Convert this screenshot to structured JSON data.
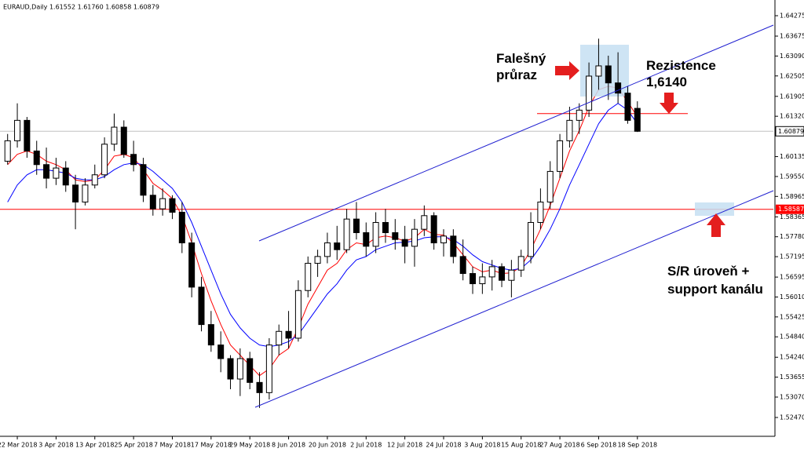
{
  "chart_data": {
    "type": "candlestick",
    "title": "EURAUD,Daily  1.61552 1.61760 1.60858 1.60879",
    "categories": [
      null,
      "22 Mar 2018",
      null,
      null,
      null,
      "3 Apr 2018",
      null,
      null,
      null,
      "13 Apr 2018",
      null,
      null,
      null,
      "25 Apr 2018",
      null,
      null,
      null,
      "7 May 2018",
      null,
      null,
      null,
      "17 May 2018",
      null,
      null,
      null,
      "29 May 2018",
      null,
      null,
      null,
      "8 Jun 2018",
      null,
      null,
      null,
      "20 Jun 2018",
      null,
      null,
      null,
      "2 Jul 2018",
      null,
      null,
      null,
      "12 Jul 2018",
      null,
      null,
      null,
      "24 Jul 2018",
      null,
      null,
      null,
      "3 Aug 2018",
      null,
      null,
      null,
      "15 Aug 2018",
      null,
      null,
      null,
      "27 Aug 2018",
      null,
      null,
      null,
      "6 Sep 2018",
      null,
      null,
      null,
      "18 Sep 2018"
    ],
    "open": [
      1.6,
      1.606,
      1.612,
      1.603,
      1.599,
      1.595,
      1.598,
      1.593,
      1.588,
      1.593,
      1.596,
      1.605,
      1.61,
      1.602,
      1.599,
      1.59,
      1.586,
      1.589,
      1.585,
      1.576,
      1.563,
      1.552,
      1.546,
      1.542,
      1.536,
      1.542,
      1.535,
      1.532,
      1.546,
      1.55,
      1.548,
      1.562,
      1.57,
      1.572,
      1.576,
      1.574,
      1.583,
      1.579,
      1.575,
      1.582,
      1.579,
      1.577,
      1.575,
      1.58,
      1.584,
      1.576,
      1.578,
      1.572,
      1.567,
      1.564,
      1.566,
      1.569,
      1.565,
      1.568,
      1.572,
      1.582,
      1.588,
      1.597,
      1.606,
      1.612,
      1.615,
      1.625,
      1.628,
      1.623,
      1.62,
      1.61552
    ],
    "high": [
      1.608,
      1.617,
      1.613,
      1.606,
      1.604,
      1.601,
      1.6,
      1.596,
      1.595,
      1.599,
      1.607,
      1.614,
      1.612,
      1.606,
      1.601,
      1.593,
      1.592,
      1.59,
      1.588,
      1.579,
      1.566,
      1.556,
      1.55,
      1.543,
      1.545,
      1.544,
      1.538,
      1.548,
      1.552,
      1.556,
      1.565,
      1.572,
      1.574,
      1.579,
      1.581,
      1.586,
      1.588,
      1.582,
      1.585,
      1.586,
      1.583,
      1.581,
      1.583,
      1.587,
      1.585,
      1.58,
      1.58,
      1.577,
      1.569,
      1.57,
      1.571,
      1.57,
      1.571,
      1.574,
      1.585,
      1.592,
      1.6,
      1.608,
      1.616,
      1.617,
      1.629,
      1.636,
      1.631,
      1.632,
      1.622,
      1.6176
    ],
    "low": [
      1.599,
      1.604,
      1.601,
      1.596,
      1.592,
      1.593,
      1.591,
      1.58,
      1.587,
      1.592,
      1.595,
      1.603,
      1.601,
      1.597,
      1.588,
      1.584,
      1.584,
      1.583,
      1.573,
      1.56,
      1.55,
      1.544,
      1.538,
      1.533,
      1.531,
      1.533,
      1.5275,
      1.53,
      1.543,
      1.545,
      1.547,
      1.56,
      1.566,
      1.57,
      1.571,
      1.573,
      1.577,
      1.572,
      1.573,
      1.576,
      1.574,
      1.57,
      1.569,
      1.578,
      1.574,
      1.572,
      1.57,
      1.565,
      1.561,
      1.561,
      1.562,
      1.563,
      1.56,
      1.566,
      1.57,
      1.58,
      1.586,
      1.595,
      1.604,
      1.608,
      1.613,
      1.621,
      1.618,
      1.617,
      1.611,
      1.60858
    ],
    "close": [
      1.606,
      1.612,
      1.603,
      1.599,
      1.595,
      1.598,
      1.593,
      1.588,
      1.593,
      1.596,
      1.605,
      1.61,
      1.602,
      1.599,
      1.59,
      1.586,
      1.589,
      1.585,
      1.576,
      1.563,
      1.552,
      1.546,
      1.542,
      1.536,
      1.542,
      1.535,
      1.532,
      1.546,
      1.55,
      1.548,
      1.562,
      1.57,
      1.572,
      1.576,
      1.574,
      1.583,
      1.579,
      1.575,
      1.582,
      1.579,
      1.577,
      1.575,
      1.58,
      1.584,
      1.576,
      1.578,
      1.572,
      1.567,
      1.564,
      1.566,
      1.569,
      1.565,
      1.568,
      1.572,
      1.582,
      1.588,
      1.597,
      1.606,
      1.612,
      1.615,
      1.625,
      1.628,
      1.623,
      1.62,
      1.612,
      1.60879
    ],
    "ma": [
      {
        "color": "#ff0000",
        "values": [
          1.599,
          1.602,
          1.603,
          1.602,
          1.6,
          1.599,
          1.5975,
          1.5945,
          1.594,
          1.5945,
          1.5975,
          1.6015,
          1.602,
          1.601,
          1.5975,
          1.5935,
          1.5915,
          1.589,
          1.584,
          1.576,
          1.567,
          1.559,
          1.552,
          1.546,
          1.543,
          1.54,
          1.537,
          1.539,
          1.543,
          1.545,
          1.551,
          1.558,
          1.563,
          1.568,
          1.57,
          1.574,
          1.576,
          1.5755,
          1.5775,
          1.578,
          1.5775,
          1.5765,
          1.5775,
          1.58,
          1.5785,
          1.5783,
          1.576,
          1.5725,
          1.569,
          1.5675,
          1.568,
          1.567,
          1.5672,
          1.569,
          1.574,
          1.58,
          1.587,
          1.595,
          1.603,
          1.609,
          1.616,
          1.621,
          1.622,
          1.6215,
          1.6175,
          1.613
        ]
      },
      {
        "color": "#0000ff",
        "values": [
          1.588,
          1.593,
          1.596,
          1.5975,
          1.5975,
          1.597,
          1.5965,
          1.595,
          1.5945,
          1.5945,
          1.5955,
          1.5975,
          1.599,
          1.5995,
          1.599,
          1.597,
          1.5945,
          1.592,
          1.588,
          1.582,
          1.575,
          1.568,
          1.561,
          1.555,
          1.551,
          1.548,
          1.546,
          1.5455,
          1.546,
          1.547,
          1.549,
          1.553,
          1.557,
          1.561,
          1.564,
          1.568,
          1.571,
          1.572,
          1.574,
          1.575,
          1.576,
          1.5762,
          1.5765,
          1.5775,
          1.5778,
          1.5778,
          1.577,
          1.575,
          1.5725,
          1.5705,
          1.5695,
          1.5685,
          1.568,
          1.5685,
          1.571,
          1.575,
          1.58,
          1.586,
          1.593,
          1.599,
          1.605,
          1.611,
          1.615,
          1.617,
          1.615,
          1.611
        ]
      }
    ],
    "up_color": "#ffffff",
    "down_color": "#000000",
    "ylim": [
      1.51917,
      1.64736
    ],
    "yticks": [
      1.64275,
      1.63675,
      {
        "value": 1.6309,
        "label": "1.63090"
      },
      1.62505,
      1.61905,
      {
        "value": 1.6132,
        "label": "1.61320"
      },
      1.60135,
      {
        "value": 1.5955,
        "label": "1.59550"
      },
      1.58965,
      1.58365,
      {
        "value": 1.5778,
        "label": "1.57780"
      },
      1.57195,
      1.56595,
      {
        "value": 1.5601,
        "label": "1.56010"
      },
      1.55425,
      {
        "value": 1.5484,
        "label": "1.54840"
      },
      {
        "value": 1.5424,
        "label": "1.54240"
      },
      1.53655,
      {
        "value": 1.5307,
        "label": "1.53070"
      },
      {
        "value": 1.5247,
        "label": "1.52470"
      }
    ],
    "current_price": 1.60879,
    "level": {
      "value": 1.58587,
      "color": "#ff0000"
    },
    "resistance": {
      "value": 1.614,
      "color": "#ff0000"
    },
    "annotations": [
      "Falešný",
      "průraz",
      "Rezistence",
      "1,6140",
      "S/R úroveň +",
      "support kanálu"
    ]
  }
}
